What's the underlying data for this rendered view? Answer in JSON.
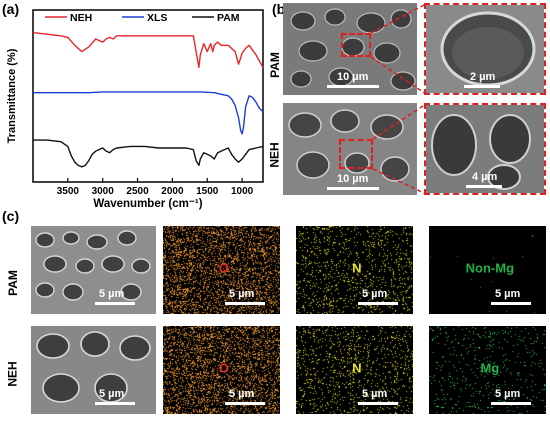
{
  "panel_labels": {
    "a": "(a)",
    "b": "(b)",
    "c": "(c)"
  },
  "chart_data": {
    "type": "line",
    "xlabel": "Wavenumber (cm⁻¹)",
    "ylabel": "Transmittance (%)",
    "xlim": [
      4000,
      700
    ],
    "x_ticks": [
      3500,
      3000,
      2500,
      2000,
      1500,
      1000
    ],
    "legend_position": "top",
    "series": [
      {
        "name": "NEH",
        "color": "#e8262a",
        "x": [
          4000,
          3800,
          3600,
          3500,
          3400,
          3300,
          3200,
          3100,
          3000,
          2950,
          2900,
          2850,
          2800,
          2600,
          2400,
          2200,
          2000,
          1800,
          1700,
          1660,
          1620,
          1600,
          1550,
          1500,
          1450,
          1420,
          1400,
          1350,
          1300,
          1200,
          1100,
          1050,
          1000,
          950,
          900,
          800,
          700
        ],
        "y": [
          92,
          91,
          90,
          89,
          84,
          80,
          83,
          88,
          86,
          88,
          89,
          88,
          90,
          90,
          90,
          90,
          90,
          90,
          90,
          80,
          70,
          78,
          85,
          80,
          85,
          80,
          84,
          86,
          84,
          84,
          80,
          72,
          79,
          82,
          84,
          78,
          70
        ]
      },
      {
        "name": "XLS",
        "color": "#1c3cd6",
        "x": [
          4000,
          3800,
          3600,
          3400,
          3200,
          3000,
          2800,
          2600,
          2400,
          2200,
          2000,
          1800,
          1600,
          1400,
          1300,
          1200,
          1150,
          1100,
          1050,
          1020,
          1000,
          980,
          950,
          900,
          850,
          800,
          750,
          700
        ],
        "y": [
          54,
          54,
          54,
          54,
          54,
          54.5,
          54.5,
          54.5,
          54.5,
          54.5,
          54.5,
          54.5,
          54.5,
          54,
          53,
          52,
          50,
          46,
          38,
          30,
          28,
          32,
          45,
          52,
          51,
          48,
          44,
          42
        ]
      },
      {
        "name": "PAM",
        "color": "#111111",
        "x": [
          4000,
          3800,
          3600,
          3500,
          3450,
          3400,
          3350,
          3300,
          3250,
          3200,
          3150,
          3100,
          3000,
          2950,
          2900,
          2850,
          2800,
          2600,
          2400,
          2200,
          2000,
          1800,
          1700,
          1660,
          1620,
          1600,
          1550,
          1450,
          1400,
          1350,
          1300,
          1200,
          1150,
          1100,
          1050,
          1000,
          950,
          900,
          800,
          700
        ],
        "y": [
          24,
          24,
          23,
          20,
          14,
          10,
          8,
          7,
          8,
          11,
          15,
          17,
          19,
          17,
          16,
          18,
          19,
          20,
          20,
          19,
          19,
          19,
          18,
          11,
          8,
          12,
          16,
          14,
          12,
          16,
          17,
          19,
          15,
          12,
          10,
          12,
          15,
          18,
          19,
          20
        ]
      }
    ]
  },
  "sem_b": [
    {
      "row": "PAM",
      "main_scale": "10 µm",
      "zoom_scale": "2 µm"
    },
    {
      "row": "NEH",
      "main_scale": "10 µm",
      "zoom_scale": "4 µm"
    }
  ],
  "rows_c": [
    {
      "row": "PAM",
      "sem_scale": "5 µm",
      "maps": [
        {
          "element": "O",
          "color": "#e8262a",
          "dot_color": "#e39030",
          "scale": "5 µm"
        },
        {
          "element": "N",
          "color": "#e6e620",
          "dot_color": "#d4d41c",
          "scale": "5 µm"
        },
        {
          "element": "Non-Mg",
          "color": "#22b04a",
          "dot_color": "#1f9a3f",
          "scale": "5 µm"
        }
      ]
    },
    {
      "row": "NEH",
      "sem_scale": "5 µm",
      "maps": [
        {
          "element": "O",
          "color": "#e8262a",
          "dot_color": "#e39030",
          "scale": "5 µm"
        },
        {
          "element": "N",
          "color": "#e6e620",
          "dot_color": "#d4d41c",
          "scale": "5 µm"
        },
        {
          "element": "Mg",
          "color": "#22b04a",
          "dot_color": "#2ecc55",
          "scale": "5 µm"
        }
      ]
    }
  ]
}
